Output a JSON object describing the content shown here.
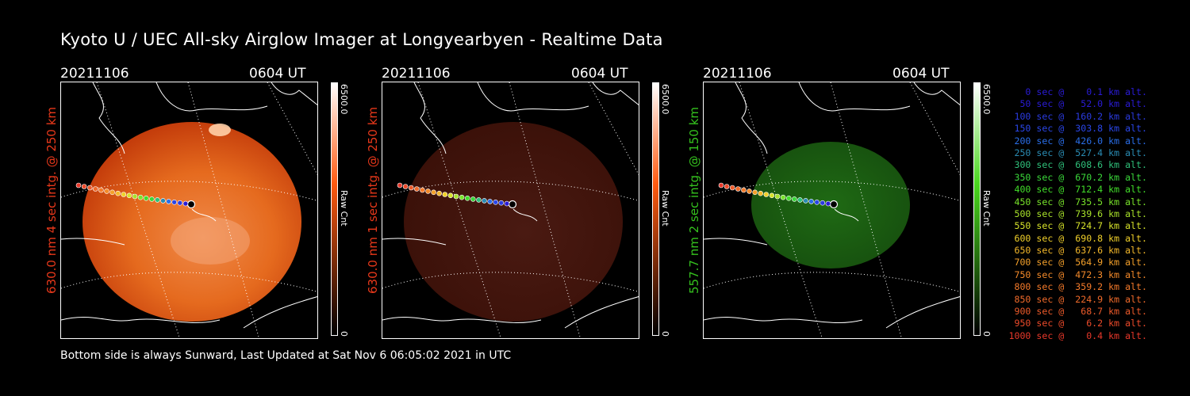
{
  "title": "Kyoto U / UEC All-sky Airglow Imager at Longyearbyen - Realtime Data",
  "footer": "Bottom side is always Sunward, Last Updated at Sat Nov  6 06:05:02 2021 in UTC",
  "panels": [
    {
      "date": "20211106",
      "time": "0604 UT",
      "ylabel": "630.0 nm 4 sec intg. @ 250 km",
      "label_color": "#e8381a",
      "colorbar": {
        "max": "6500.0",
        "unit": "Raw Cnt",
        "min": "0",
        "color": "#ff5a10"
      }
    },
    {
      "date": "20211106",
      "time": "0604 UT",
      "ylabel": "630.0 nm 1 sec intg. @ 250 km",
      "label_color": "#e8381a",
      "colorbar": {
        "max": "6500.0",
        "unit": "Raw Cnt",
        "min": "0",
        "color": "#ff5a10"
      }
    },
    {
      "date": "20211106",
      "time": "0604 UT",
      "ylabel": "557.7 nm 2 sec intg. @ 150 km",
      "label_color": "#35c21e",
      "colorbar": {
        "max": "6500.0",
        "unit": "Raw Cnt",
        "min": "0",
        "color": "#4ad81e"
      }
    }
  ],
  "legend": [
    {
      "text": "   0 sec @    0.1 km alt.",
      "color": "#2a1bd6"
    },
    {
      "text": "  50 sec @   52.0 km alt.",
      "color": "#2a1bd6"
    },
    {
      "text": " 100 sec @  160.2 km alt.",
      "color": "#2a3ae0"
    },
    {
      "text": " 150 sec @  303.8 km alt.",
      "color": "#2a46e8"
    },
    {
      "text": " 200 sec @  426.0 km alt.",
      "color": "#2a6ee8"
    },
    {
      "text": " 250 sec @  527.4 km alt.",
      "color": "#2a8cb4"
    },
    {
      "text": " 300 sec @  608.6 km alt.",
      "color": "#2fc07a"
    },
    {
      "text": " 350 sec @  670.2 km alt.",
      "color": "#3ad83a"
    },
    {
      "text": " 400 sec @  712.4 km alt.",
      "color": "#42de2a"
    },
    {
      "text": " 450 sec @  735.5 km alt.",
      "color": "#78e22a"
    },
    {
      "text": " 500 sec @  739.6 km alt.",
      "color": "#a8e22a"
    },
    {
      "text": " 550 sec @  724.7 km alt.",
      "color": "#d6e22a"
    },
    {
      "text": " 600 sec @  690.8 km alt.",
      "color": "#f0d02a"
    },
    {
      "text": " 650 sec @  637.6 km alt.",
      "color": "#f4b82a"
    },
    {
      "text": " 700 sec @  564.9 km alt.",
      "color": "#f4a02a"
    },
    {
      "text": " 750 sec @  472.3 km alt.",
      "color": "#f48a2a"
    },
    {
      "text": " 800 sec @  359.2 km alt.",
      "color": "#f47a2a"
    },
    {
      "text": " 850 sec @  224.9 km alt.",
      "color": "#f06a2a"
    },
    {
      "text": " 900 sec @   68.7 km alt.",
      "color": "#ec5a2a"
    },
    {
      "text": " 950 sec @    6.2 km alt.",
      "color": "#ec4a2a"
    },
    {
      "text": "1000 sec @    0.4 km alt.",
      "color": "#e8382a"
    }
  ]
}
